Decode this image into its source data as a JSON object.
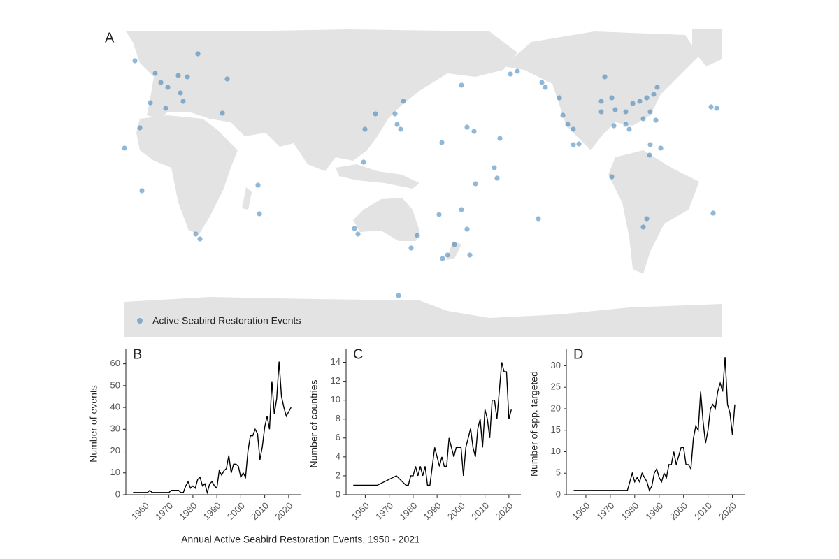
{
  "map": {
    "label": "A",
    "legend": "Active Seabird Restoration Events",
    "points": [
      [
        -10.8,
        65.2
      ],
      [
        25.2,
        69.2
      ],
      [
        0.8,
        58
      ],
      [
        4,
        52.8
      ],
      [
        8,
        50
      ],
      [
        14,
        56.8
      ],
      [
        19.2,
        56
      ],
      [
        15.2,
        46.8
      ],
      [
        -2,
        41.2
      ],
      [
        6.8,
        38
      ],
      [
        16.8,
        42
      ],
      [
        39.2,
        35.2
      ],
      [
        -8,
        26.8
      ],
      [
        -16.8,
        15.2
      ],
      [
        -6.8,
        -9.2
      ],
      [
        42,
        54.8
      ],
      [
        24,
        -34
      ],
      [
        26.4,
        -36.8
      ],
      [
        59.6,
        -6
      ],
      [
        60.4,
        -22.4
      ],
      [
        120.8,
        26
      ],
      [
        126.8,
        34.8
      ],
      [
        138,
        34.8
      ],
      [
        142.8,
        42
      ],
      [
        139.2,
        28.8
      ],
      [
        141.2,
        26
      ],
      [
        120,
        7.2
      ],
      [
        114.8,
        -30.8
      ],
      [
        116.8,
        -34
      ],
      [
        150.8,
        -34.8
      ],
      [
        147.2,
        -42
      ],
      [
        140,
        -69.2
      ],
      [
        176,
        51.2
      ],
      [
        179.2,
        27.2
      ],
      [
        -176.8,
        24.8
      ],
      [
        164.8,
        18.4
      ],
      [
        -162,
        20.8
      ],
      [
        -165.2,
        4
      ],
      [
        -163.6,
        -2
      ],
      [
        -176,
        -5.2
      ],
      [
        163.2,
        -22.8
      ],
      [
        176,
        -20
      ],
      [
        179.2,
        -31.2
      ],
      [
        172,
        -40
      ],
      [
        168,
        -46
      ],
      [
        165.2,
        -48
      ],
      [
        -179.2,
        -46
      ],
      [
        -152,
        59.2
      ],
      [
        -156,
        57.6
      ],
      [
        -138,
        52.8
      ],
      [
        -128,
        44
      ],
      [
        -126,
        34
      ],
      [
        -123.2,
        28.8
      ],
      [
        -120,
        26
      ],
      [
        -140,
        -25.2
      ],
      [
        -120,
        17.2
      ],
      [
        -116.8,
        17.6
      ],
      [
        -102,
        56
      ],
      [
        -104,
        36
      ],
      [
        -98,
        44
      ],
      [
        -96,
        37.2
      ],
      [
        -90,
        36
      ],
      [
        -86,
        40.8
      ],
      [
        -82,
        42
      ],
      [
        -78,
        44
      ],
      [
        -74,
        46
      ],
      [
        -72,
        50
      ],
      [
        -76,
        36
      ],
      [
        -80,
        32
      ],
      [
        -88,
        26
      ],
      [
        -90,
        28.8
      ],
      [
        -96.8,
        28
      ],
      [
        -72.8,
        31.2
      ],
      [
        -76,
        17.2
      ],
      [
        -70,
        15.2
      ],
      [
        -76.4,
        11.2
      ],
      [
        -98,
        -1.2
      ],
      [
        -78,
        -25.2
      ],
      [
        -80,
        -30
      ],
      [
        -41.2,
        38.8
      ],
      [
        -38,
        38
      ],
      [
        -40,
        -22
      ],
      [
        -136,
        50
      ],
      [
        -104,
        42
      ]
    ],
    "color": "#2372ad"
  },
  "chart_data": [
    {
      "type": "line",
      "label": "B",
      "ylabel": "Number of events",
      "color": "#000000",
      "x": [
        1955,
        1956,
        1957,
        1958,
        1959,
        1960,
        1961,
        1962,
        1963,
        1964,
        1965,
        1966,
        1967,
        1968,
        1969,
        1970,
        1971,
        1972,
        1973,
        1974,
        1975,
        1976,
        1977,
        1978,
        1979,
        1980,
        1981,
        1982,
        1983,
        1984,
        1985,
        1986,
        1987,
        1988,
        1989,
        1990,
        1991,
        1992,
        1993,
        1994,
        1995,
        1996,
        1997,
        1998,
        1999,
        2000,
        2001,
        2002,
        2003,
        2004,
        2005,
        2006,
        2007,
        2008,
        2009,
        2010,
        2011,
        2012,
        2013,
        2014,
        2015,
        2016,
        2017,
        2018,
        2019,
        2020,
        2021
      ],
      "values": [
        1,
        1,
        1,
        1,
        1,
        1,
        1,
        2,
        1,
        1,
        1,
        1,
        1,
        1,
        1,
        1,
        2,
        2,
        2,
        2,
        1,
        1,
        4,
        6,
        3,
        4,
        3,
        7,
        8,
        4,
        5,
        1,
        5,
        6,
        4,
        3,
        11,
        9,
        11,
        12,
        18,
        10,
        14,
        14,
        13,
        8,
        10,
        8,
        20,
        27,
        27,
        30,
        28,
        16,
        22,
        31,
        36,
        30,
        52,
        37,
        44,
        61,
        45,
        40,
        36,
        38,
        40
      ],
      "xlim": [
        1952,
        2025
      ],
      "xticks": [
        1960,
        1970,
        1980,
        1990,
        2000,
        2010,
        2020
      ],
      "ylim": [
        0,
        65
      ],
      "yticks": [
        0,
        10,
        20,
        30,
        40,
        50,
        60
      ]
    },
    {
      "type": "line",
      "label": "C",
      "ylabel": "Number of countries",
      "color": "#000000",
      "x": [
        1955,
        1965,
        1973,
        1977,
        1978,
        1979,
        1980,
        1981,
        1982,
        1983,
        1984,
        1985,
        1986,
        1987,
        1988,
        1989,
        1990,
        1991,
        1992,
        1993,
        1994,
        1995,
        1996,
        1997,
        1998,
        1999,
        2000,
        2001,
        2002,
        2003,
        2004,
        2005,
        2006,
        2007,
        2008,
        2009,
        2010,
        2011,
        2012,
        2013,
        2014,
        2015,
        2016,
        2017,
        2018,
        2019,
        2020,
        2021
      ],
      "values": [
        1,
        1,
        2,
        1,
        1,
        2,
        2,
        3,
        2,
        3,
        2,
        3,
        1,
        1,
        3,
        5,
        4,
        3,
        4,
        3,
        3,
        6,
        5,
        4,
        5,
        5,
        5,
        2,
        5,
        6,
        7,
        5,
        4,
        7,
        8,
        5,
        9,
        8,
        6,
        10,
        10,
        8,
        11,
        14,
        13,
        13,
        8,
        9
      ],
      "xlim": [
        1952,
        2025
      ],
      "xticks": [
        1960,
        1970,
        1980,
        1990,
        2000,
        2010,
        2020
      ],
      "ylim": [
        0,
        15
      ],
      "yticks": [
        0,
        2,
        4,
        6,
        8,
        10,
        12,
        14
      ]
    },
    {
      "type": "line",
      "label": "D",
      "ylabel": "Number of spp. targeted",
      "color": "#000000",
      "x": [
        1955,
        1976,
        1977,
        1978,
        1979,
        1980,
        1981,
        1982,
        1983,
        1984,
        1985,
        1986,
        1987,
        1988,
        1989,
        1990,
        1991,
        1992,
        1993,
        1994,
        1995,
        1996,
        1997,
        1998,
        1999,
        2000,
        2001,
        2002,
        2003,
        2004,
        2005,
        2006,
        2007,
        2008,
        2009,
        2010,
        2011,
        2012,
        2013,
        2014,
        2015,
        2016,
        2017,
        2018,
        2019,
        2020,
        2021
      ],
      "values": [
        1,
        1,
        1,
        3,
        5,
        3,
        4,
        3,
        5,
        4,
        3,
        1,
        2,
        5,
        6,
        4,
        3,
        5,
        4,
        7,
        7,
        10,
        7,
        9,
        11,
        11,
        7,
        7,
        6,
        13,
        16,
        15,
        24,
        17,
        12,
        15,
        20,
        21,
        20,
        24,
        26,
        24,
        32,
        21,
        19,
        14,
        21
      ],
      "xlim": [
        1952,
        2025
      ],
      "xticks": [
        1960,
        1970,
        1980,
        1990,
        2000,
        2010,
        2020
      ],
      "ylim": [
        0,
        33
      ],
      "yticks": [
        0,
        5,
        10,
        15,
        20,
        25,
        30
      ]
    }
  ],
  "caption": "Annual Active Seabird Restoration Events, 1950 - 2021"
}
